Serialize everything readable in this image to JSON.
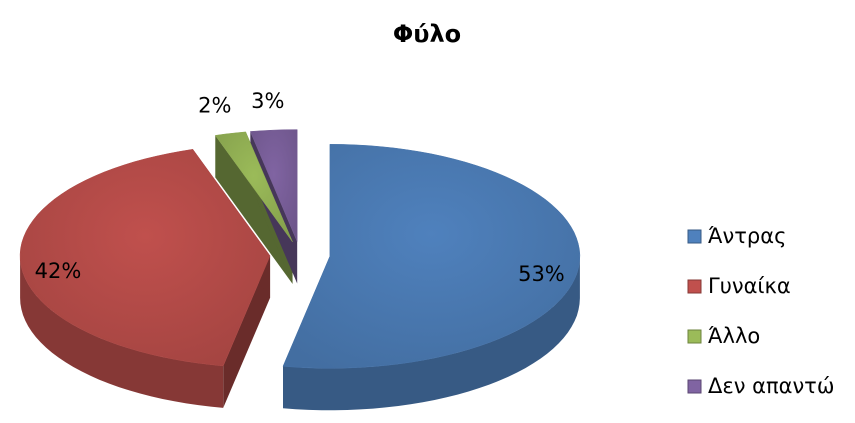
{
  "chart_data": {
    "type": "pie",
    "title": "Φύλο",
    "categories": [
      "Άντρας",
      "Γυναίκα",
      "Άλλο",
      "Δεν απαντώ"
    ],
    "values": [
      53,
      42,
      2,
      3
    ],
    "value_labels": [
      "53%",
      "42%",
      "2%",
      "3%"
    ],
    "colors": [
      "#4f81bd",
      "#c0504d",
      "#9bbb59",
      "#8064a2"
    ],
    "legend": "right"
  }
}
